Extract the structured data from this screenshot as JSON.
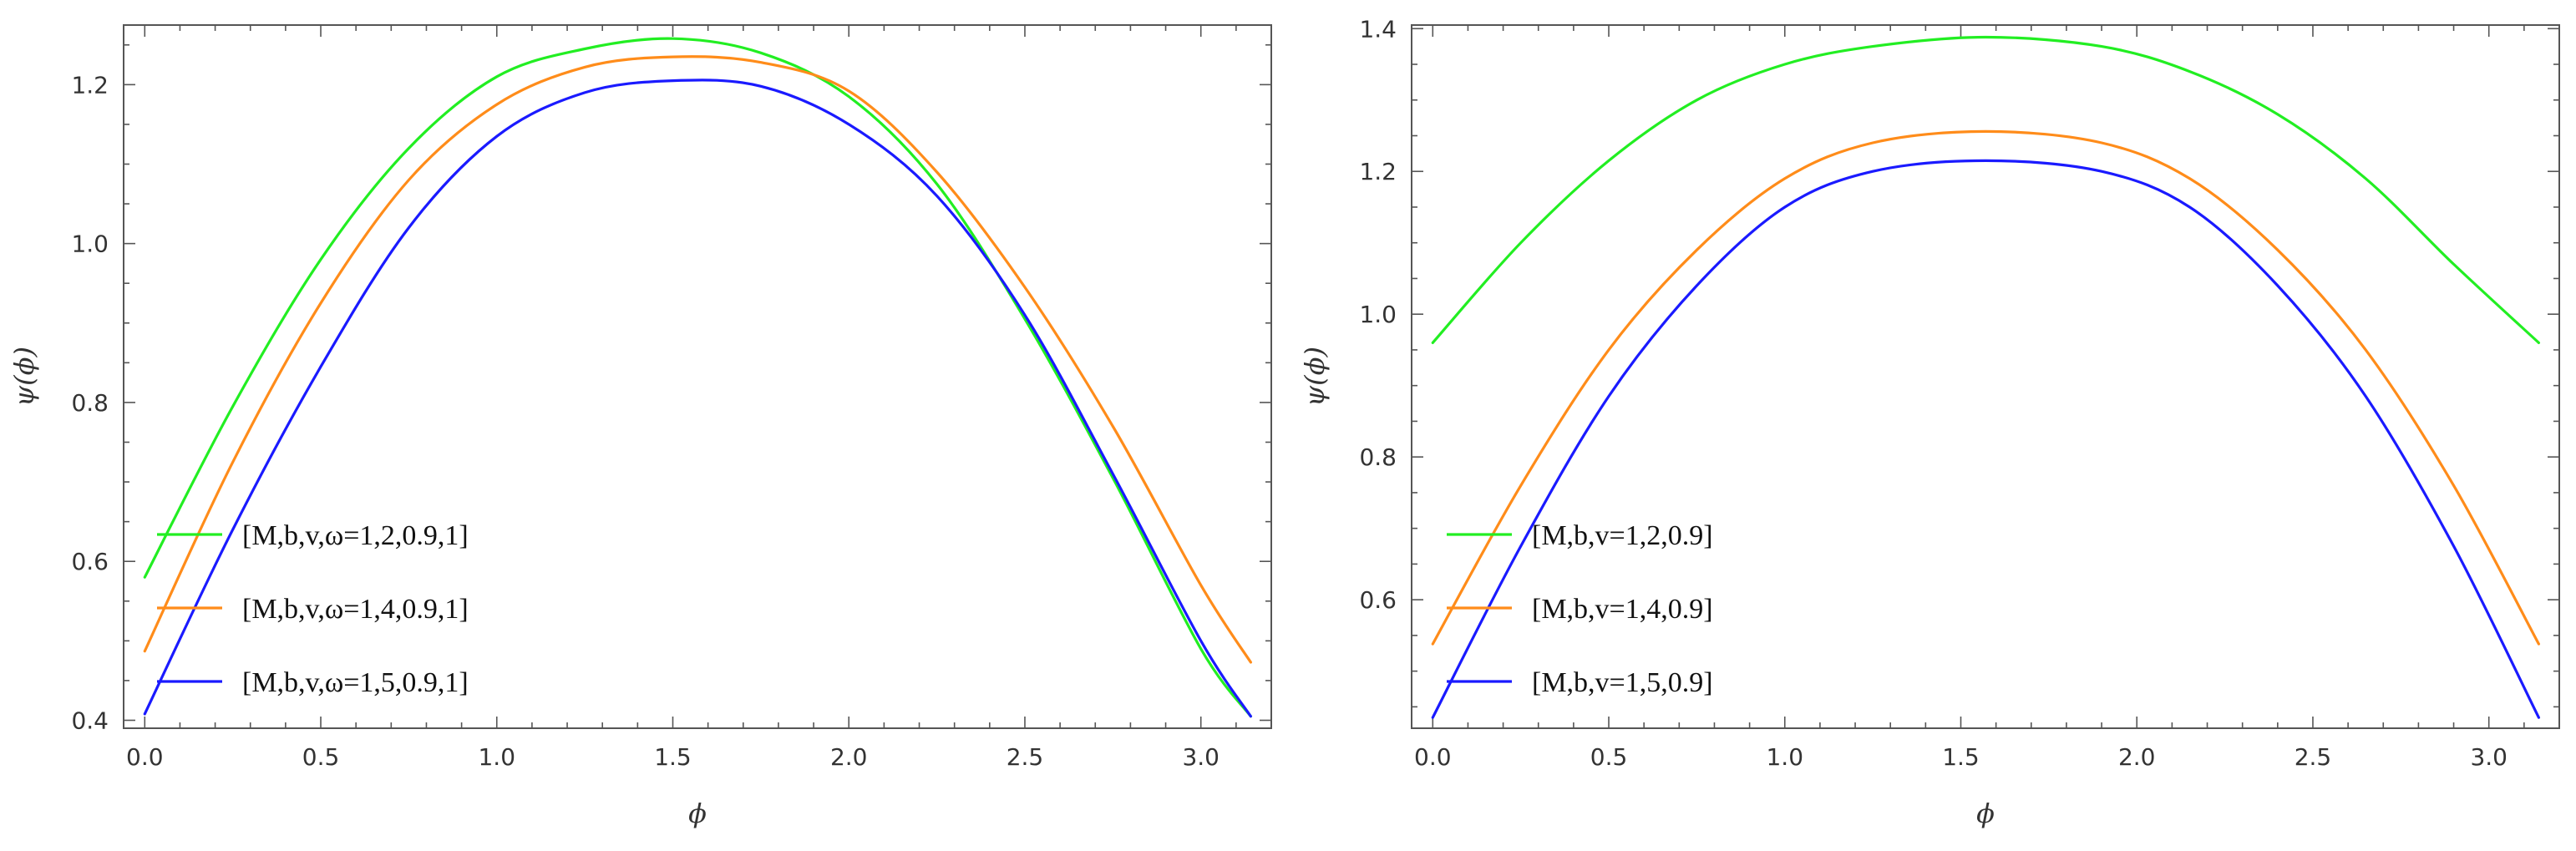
{
  "chart_data": [
    {
      "type": "line",
      "title": "",
      "xlabel": "ϕ",
      "ylabel": "ψ(ϕ)",
      "xlim": [
        -0.06,
        3.2
      ],
      "ylim": [
        0.39,
        1.275
      ],
      "xticks": [
        0.0,
        0.5,
        1.0,
        1.5,
        2.0,
        2.5,
        3.0
      ],
      "xtick_labels": [
        "0.0",
        "0.5",
        "1.0",
        "1.5",
        "2.0",
        "2.5",
        "3.0"
      ],
      "yticks": [
        0.4,
        0.6,
        0.8,
        1.0,
        1.2
      ],
      "ytick_labels": [
        "0.4",
        "0.6",
        "0.8",
        "1.0",
        "1.2"
      ],
      "legend_position": "bottom-left",
      "series": [
        {
          "name": "[M,b,v,ω=1,2,0.9,1]",
          "color": "#22ee22",
          "x": [
            0.0,
            0.25,
            0.5,
            0.75,
            1.0,
            1.25,
            1.5,
            1.75,
            2.0,
            2.25,
            2.5,
            2.75,
            3.0,
            3.1416
          ],
          "y": [
            0.58,
            0.795,
            0.98,
            1.12,
            1.21,
            1.245,
            1.258,
            1.24,
            1.185,
            1.075,
            0.905,
            0.705,
            0.49,
            0.405
          ]
        },
        {
          "name": "[M,b,v,ω=1,4,0.9,1]",
          "color": "#ff8c1a",
          "x": [
            0.0,
            0.25,
            0.5,
            0.75,
            1.0,
            1.25,
            1.5,
            1.75,
            2.0,
            2.25,
            2.5,
            2.75,
            3.0,
            3.1416
          ],
          "y": [
            0.487,
            0.725,
            0.925,
            1.08,
            1.175,
            1.222,
            1.235,
            1.228,
            1.192,
            1.09,
            0.945,
            0.77,
            0.57,
            0.473
          ]
        },
        {
          "name": "[M,b,v,ω=1,5,0.9,1]",
          "color": "#1a1aff",
          "x": [
            0.0,
            0.25,
            0.5,
            0.75,
            1.0,
            1.25,
            1.5,
            1.75,
            2.0,
            2.25,
            2.5,
            2.75,
            3.0,
            3.1416
          ],
          "y": [
            0.408,
            0.64,
            0.845,
            1.02,
            1.135,
            1.19,
            1.205,
            1.198,
            1.15,
            1.06,
            0.91,
            0.71,
            0.5,
            0.405
          ]
        }
      ]
    },
    {
      "type": "line",
      "title": "",
      "xlabel": "ϕ",
      "ylabel": "ψ(ϕ)",
      "xlim": [
        -0.06,
        3.2
      ],
      "ylim": [
        0.42,
        1.405
      ],
      "xticks": [
        0.0,
        0.5,
        1.0,
        1.5,
        2.0,
        2.5,
        3.0
      ],
      "xtick_labels": [
        "0.0",
        "0.5",
        "1.0",
        "1.5",
        "2.0",
        "2.5",
        "3.0"
      ],
      "yticks": [
        0.6,
        0.8,
        1.0,
        1.2,
        1.4
      ],
      "ytick_labels": [
        "0.6",
        "0.8",
        "1.0",
        "1.2",
        "1.4"
      ],
      "legend_position": "bottom-left",
      "series": [
        {
          "name": "[M,b,v=1,2,0.9]",
          "color": "#22ee22",
          "x": [
            0.0,
            0.25,
            0.5,
            0.75,
            1.0,
            1.25,
            1.5708,
            1.9,
            2.15,
            2.4,
            2.65,
            2.9,
            3.1416
          ],
          "y": [
            0.96,
            1.1,
            1.215,
            1.3,
            1.35,
            1.375,
            1.388,
            1.375,
            1.34,
            1.28,
            1.19,
            1.07,
            0.96
          ]
        },
        {
          "name": "[M,b,v=1,4,0.9]",
          "color": "#ff8c1a",
          "x": [
            0.0,
            0.25,
            0.5,
            0.75,
            1.0,
            1.25,
            1.5708,
            1.9,
            2.15,
            2.4,
            2.65,
            2.9,
            3.1416
          ],
          "y": [
            0.538,
            0.76,
            0.95,
            1.09,
            1.19,
            1.24,
            1.256,
            1.24,
            1.19,
            1.09,
            0.95,
            0.76,
            0.538
          ]
        },
        {
          "name": "[M,b,v=1,5,0.9]",
          "color": "#1a1aff",
          "x": [
            0.0,
            0.25,
            0.5,
            0.75,
            1.0,
            1.25,
            1.5708,
            1.9,
            2.15,
            2.4,
            2.65,
            2.9,
            3.1416
          ],
          "y": [
            0.435,
            0.675,
            0.885,
            1.04,
            1.15,
            1.2,
            1.215,
            1.2,
            1.15,
            1.04,
            0.885,
            0.675,
            0.435
          ]
        }
      ]
    }
  ]
}
